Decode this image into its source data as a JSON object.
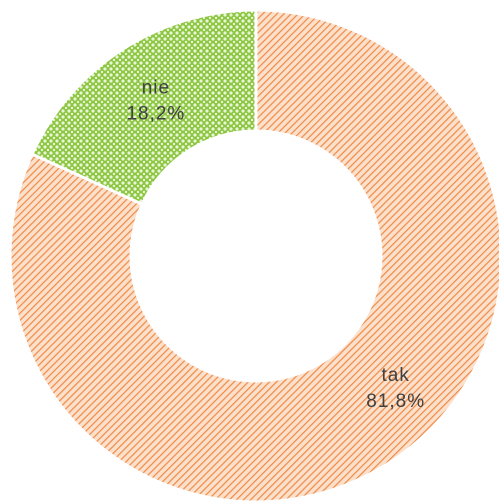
{
  "chart_data": {
    "type": "donut",
    "categories": [
      "tak",
      "nie"
    ],
    "values": [
      81.8,
      18.2
    ],
    "value_labels": [
      "81,8%",
      "18,2%"
    ],
    "colors": [
      "#f4b183",
      "#a9d18e"
    ]
  }
}
